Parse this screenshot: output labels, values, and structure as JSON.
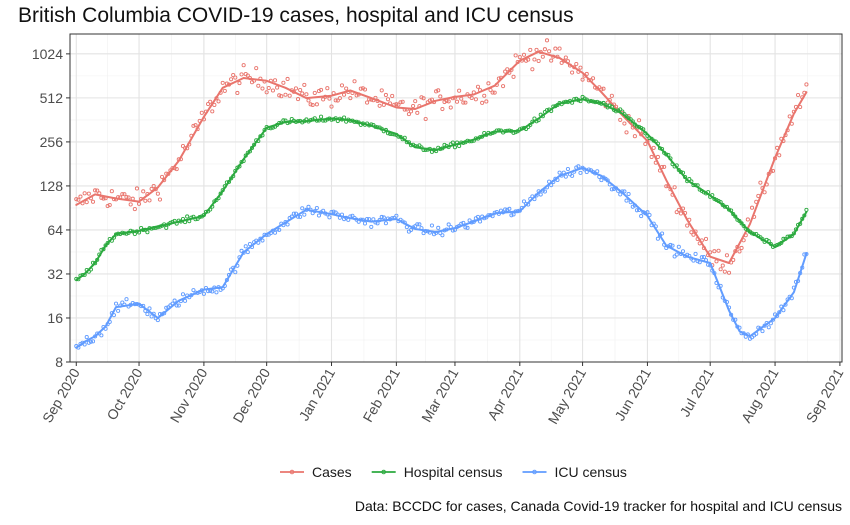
{
  "chart_data": {
    "type": "line",
    "title": "British Columbia COVID-19 cases, hospital and ICU census",
    "caption": "Data: BCCDC for cases, Canada Covid-19 tracker for hospital and ICU census",
    "xlabel": "",
    "ylabel": "",
    "y_scale": "log2",
    "ylim": [
      8,
      1400
    ],
    "xlim": [
      "2020-08-29",
      "2021-09-02"
    ],
    "y_ticks": [
      8,
      16,
      32,
      64,
      128,
      256,
      512,
      1024
    ],
    "x_ticks": [
      "Sep 2020",
      "Oct 2020",
      "Nov 2020",
      "Dec 2020",
      "Jan 2021",
      "Feb 2021",
      "Mar 2021",
      "Apr 2021",
      "May 2021",
      "Jun 2021",
      "Jul 2021",
      "Aug 2021",
      "Sep 2021"
    ],
    "x_tick_dates": [
      "2020-09-01",
      "2020-10-01",
      "2020-11-01",
      "2020-12-01",
      "2021-01-01",
      "2021-02-01",
      "2021-03-01",
      "2021-04-01",
      "2021-05-01",
      "2021-06-01",
      "2021-07-01",
      "2021-08-01",
      "2021-09-01"
    ],
    "grid": true,
    "legend_position": "bottom",
    "series": [
      {
        "name": "Cases",
        "color": "#E9756D",
        "x": [
          "2020-09-01",
          "2020-09-10",
          "2020-09-20",
          "2020-10-01",
          "2020-10-10",
          "2020-10-20",
          "2020-11-01",
          "2020-11-10",
          "2020-11-20",
          "2020-12-01",
          "2020-12-10",
          "2020-12-20",
          "2021-01-01",
          "2021-01-10",
          "2021-01-20",
          "2021-02-01",
          "2021-02-10",
          "2021-02-20",
          "2021-03-01",
          "2021-03-10",
          "2021-03-20",
          "2021-04-01",
          "2021-04-10",
          "2021-04-20",
          "2021-05-01",
          "2021-05-10",
          "2021-05-20",
          "2021-06-01",
          "2021-06-10",
          "2021-06-20",
          "2021-07-01",
          "2021-07-10",
          "2021-07-20",
          "2021-08-01",
          "2021-08-10",
          "2021-08-16"
        ],
        "values": [
          95,
          112,
          105,
          100,
          125,
          190,
          380,
          600,
          700,
          670,
          600,
          510,
          530,
          575,
          510,
          440,
          430,
          490,
          520,
          540,
          620,
          920,
          1060,
          960,
          760,
          560,
          390,
          260,
          140,
          75,
          42,
          38,
          70,
          200,
          400,
          560
        ]
      },
      {
        "name": "Hospital census",
        "color": "#2BAA3F",
        "x": [
          "2020-09-01",
          "2020-09-05",
          "2020-09-10",
          "2020-09-15",
          "2020-09-20",
          "2020-10-01",
          "2020-10-15",
          "2020-11-01",
          "2020-11-10",
          "2020-11-20",
          "2020-12-01",
          "2020-12-10",
          "2020-12-20",
          "2021-01-01",
          "2021-01-10",
          "2021-01-20",
          "2021-02-01",
          "2021-02-10",
          "2021-02-20",
          "2021-03-01",
          "2021-03-10",
          "2021-03-20",
          "2021-04-01",
          "2021-04-10",
          "2021-04-20",
          "2021-05-01",
          "2021-05-10",
          "2021-05-20",
          "2021-06-01",
          "2021-06-10",
          "2021-06-20",
          "2021-07-01",
          "2021-07-10",
          "2021-07-20",
          "2021-08-01",
          "2021-08-10",
          "2021-08-16"
        ],
        "values": [
          29,
          32,
          38,
          50,
          60,
          63,
          70,
          80,
          118,
          195,
          320,
          350,
          355,
          370,
          360,
          330,
          290,
          235,
          225,
          245,
          265,
          300,
          305,
          370,
          470,
          500,
          470,
          400,
          290,
          210,
          140,
          110,
          88,
          62,
          49,
          60,
          85
        ]
      },
      {
        "name": "ICU census",
        "color": "#619CFF",
        "x": [
          "2020-09-01",
          "2020-09-05",
          "2020-09-10",
          "2020-09-15",
          "2020-09-20",
          "2020-10-01",
          "2020-10-10",
          "2020-10-20",
          "2020-11-01",
          "2020-11-10",
          "2020-11-20",
          "2020-12-01",
          "2020-12-10",
          "2020-12-20",
          "2021-01-01",
          "2021-01-10",
          "2021-01-20",
          "2021-02-01",
          "2021-02-10",
          "2021-02-20",
          "2021-03-01",
          "2021-03-10",
          "2021-03-20",
          "2021-04-01",
          "2021-04-10",
          "2021-04-20",
          "2021-05-01",
          "2021-05-10",
          "2021-05-20",
          "2021-06-01",
          "2021-06-10",
          "2021-06-20",
          "2021-07-01",
          "2021-07-10",
          "2021-07-15",
          "2021-07-20",
          "2021-08-01",
          "2021-08-10",
          "2021-08-16"
        ],
        "values": [
          10,
          11,
          12,
          14,
          19,
          20,
          16,
          21,
          25,
          26,
          45,
          60,
          72,
          88,
          82,
          77,
          73,
          76,
          65,
          62,
          66,
          73,
          83,
          86,
          115,
          150,
          170,
          150,
          115,
          80,
          50,
          42,
          38,
          18,
          13,
          12,
          16,
          24,
          44
        ]
      }
    ]
  }
}
